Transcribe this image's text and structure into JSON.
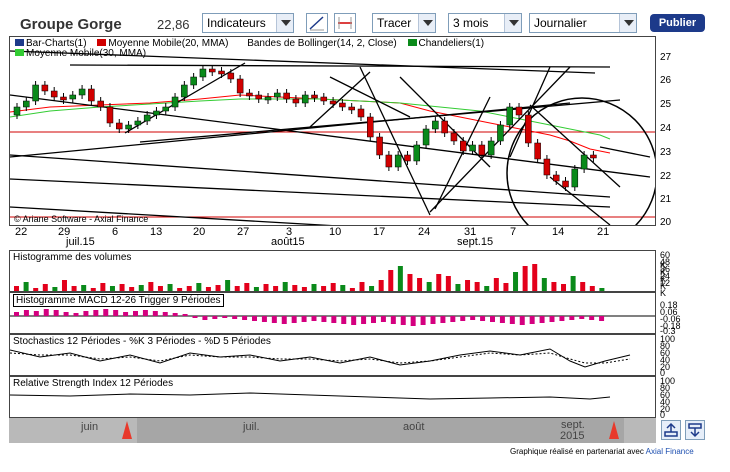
{
  "toolbar": {
    "title": "Groupe Gorge",
    "price": "22,86",
    "indicators_label": "Indicateurs",
    "draw_label": "Tracer",
    "period_value": "3 mois",
    "frequency_value": "Journalier",
    "publish_label": "Publier"
  },
  "main_chart": {
    "legend": {
      "bar": "Bar-Charts(1)",
      "mm20": "Moyenne Mobile(20, MMA)",
      "boll": "Bandes de Bollinger(14, 2, Close)",
      "candles": "Chandeliers(1)",
      "mm30": "Moyenne Mobile(30, MMA)"
    },
    "copyright": "© Ariane Software - Axial Finance",
    "y_ticks": [
      "27",
      "26",
      "25",
      "24",
      "23",
      "22",
      "21",
      "20"
    ],
    "colors": {
      "up": "#0a8a1a",
      "down": "#d10000",
      "mm20": "#ff0000",
      "mm30": "#33cc33"
    }
  },
  "x_axis": {
    "days": [
      "22",
      "29",
      "6",
      "13",
      "20",
      "27",
      "3",
      "10",
      "17",
      "24",
      "31",
      "7",
      "14",
      "21"
    ],
    "months": [
      "juil.15",
      "août15",
      "sept.15"
    ]
  },
  "volume_panel": {
    "title": "Histogramme des volumes",
    "y_ticks": [
      "60 K",
      "48 K",
      "36 K",
      "24 K",
      "12 K"
    ]
  },
  "macd_panel": {
    "title": "Histogramme MACD 12-26   Trigger 9 Périodes",
    "y_ticks": [
      "0.18",
      "0.06",
      "-0.06",
      "-0.18",
      "-0.3"
    ]
  },
  "stoch_panel": {
    "title": "Stochastics 12 Périodes  -  %K 3 Périodes  -  %D 5 Périodes",
    "y_ticks": [
      "100",
      "80",
      "60",
      "40",
      "20",
      "0"
    ]
  },
  "rsi_panel": {
    "title": "Relative Strength Index 12 Périodes",
    "y_ticks": [
      "100",
      "80",
      "60",
      "40",
      "20",
      "0"
    ]
  },
  "navigator": {
    "months": [
      "juin",
      "juil.",
      "août",
      "sept.",
      "2015"
    ]
  },
  "credit": {
    "text": "Graphique réalisé en partenariat avec",
    "link": "Axial Finance"
  }
}
